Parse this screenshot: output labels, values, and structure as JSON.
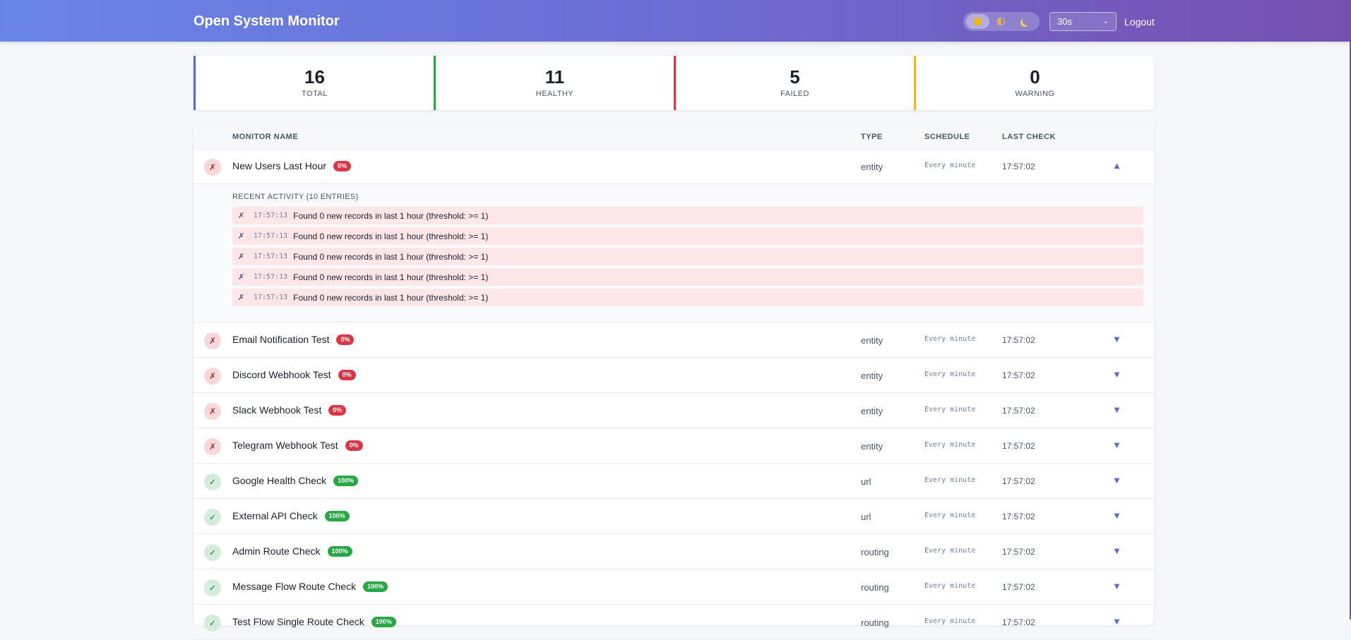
{
  "header": {
    "title": "Open System Monitor",
    "refresh_interval": "30s",
    "logout_label": "Logout"
  },
  "stats": [
    {
      "value": "16",
      "label": "TOTAL",
      "color": "#5a67d8"
    },
    {
      "value": "11",
      "label": "HEALTHY",
      "color": "#28a745"
    },
    {
      "value": "5",
      "label": "FAILED",
      "color": "#dc3545"
    },
    {
      "value": "0",
      "label": "WARNING",
      "color": "#f0b429"
    }
  ],
  "table": {
    "columns": {
      "name": "MONITOR NAME",
      "type": "TYPE",
      "schedule": "SCHEDULE",
      "last_check": "LAST CHECK"
    }
  },
  "expanded": {
    "title": "RECENT ACTIVITY (10 ENTRIES)",
    "entries": [
      {
        "icon": "✗",
        "time": "17:57:13",
        "message": "Found 0 new records in last 1 hour (threshold: >= 1)"
      },
      {
        "icon": "✗",
        "time": "17:57:13",
        "message": "Found 0 new records in last 1 hour (threshold: >= 1)"
      },
      {
        "icon": "✗",
        "time": "17:57:13",
        "message": "Found 0 new records in last 1 hour (threshold: >= 1)"
      },
      {
        "icon": "✗",
        "time": "17:57:13",
        "message": "Found 0 new records in last 1 hour (threshold: >= 1)"
      },
      {
        "icon": "✗",
        "time": "17:57:13",
        "message": "Found 0 new records in last 1 hour (threshold: >= 1)"
      }
    ]
  },
  "monitors": [
    {
      "status": "fail",
      "icon": "✗",
      "name": "New Users Last Hour",
      "pct": "0%",
      "type": "entity",
      "schedule": "Every minute",
      "last_check": "17:57:02",
      "toggle": "▲"
    },
    {
      "status": "fail",
      "icon": "✗",
      "name": "Email Notification Test",
      "pct": "0%",
      "type": "entity",
      "schedule": "Every minute",
      "last_check": "17:57:02",
      "toggle": "▼"
    },
    {
      "status": "fail",
      "icon": "✗",
      "name": "Discord Webhook Test",
      "pct": "0%",
      "type": "entity",
      "schedule": "Every minute",
      "last_check": "17:57:02",
      "toggle": "▼"
    },
    {
      "status": "fail",
      "icon": "✗",
      "name": "Slack Webhook Test",
      "pct": "0%",
      "type": "entity",
      "schedule": "Every minute",
      "last_check": "17:57:02",
      "toggle": "▼"
    },
    {
      "status": "fail",
      "icon": "✗",
      "name": "Telegram Webhook Test",
      "pct": "0%",
      "type": "entity",
      "schedule": "Every minute",
      "last_check": "17:57:02",
      "toggle": "▼"
    },
    {
      "status": "ok",
      "icon": "✓",
      "name": "Google Health Check",
      "pct": "100%",
      "type": "url",
      "schedule": "Every minute",
      "last_check": "17:57:02",
      "toggle": "▼"
    },
    {
      "status": "ok",
      "icon": "✓",
      "name": "External API Check",
      "pct": "100%",
      "type": "url",
      "schedule": "Every minute",
      "last_check": "17:57:02",
      "toggle": "▼"
    },
    {
      "status": "ok",
      "icon": "✓",
      "name": "Admin Route Check",
      "pct": "100%",
      "type": "routing",
      "schedule": "Every minute",
      "last_check": "17:57:02",
      "toggle": "▼"
    },
    {
      "status": "ok",
      "icon": "✓",
      "name": "Message Flow Route Check",
      "pct": "100%",
      "type": "routing",
      "schedule": "Every minute",
      "last_check": "17:57:02",
      "toggle": "▼"
    },
    {
      "status": "ok",
      "icon": "✓",
      "name": "Test Flow Single Route Check",
      "pct": "100%",
      "type": "routing",
      "schedule": "Every minute",
      "last_check": "17:57:02",
      "toggle": "▼"
    }
  ],
  "icons": {
    "theme_light": "sun-icon",
    "theme_auto": "half-circle-icon",
    "theme_dark": "moon-icon",
    "select_chevron": "chevron-down-icon"
  }
}
